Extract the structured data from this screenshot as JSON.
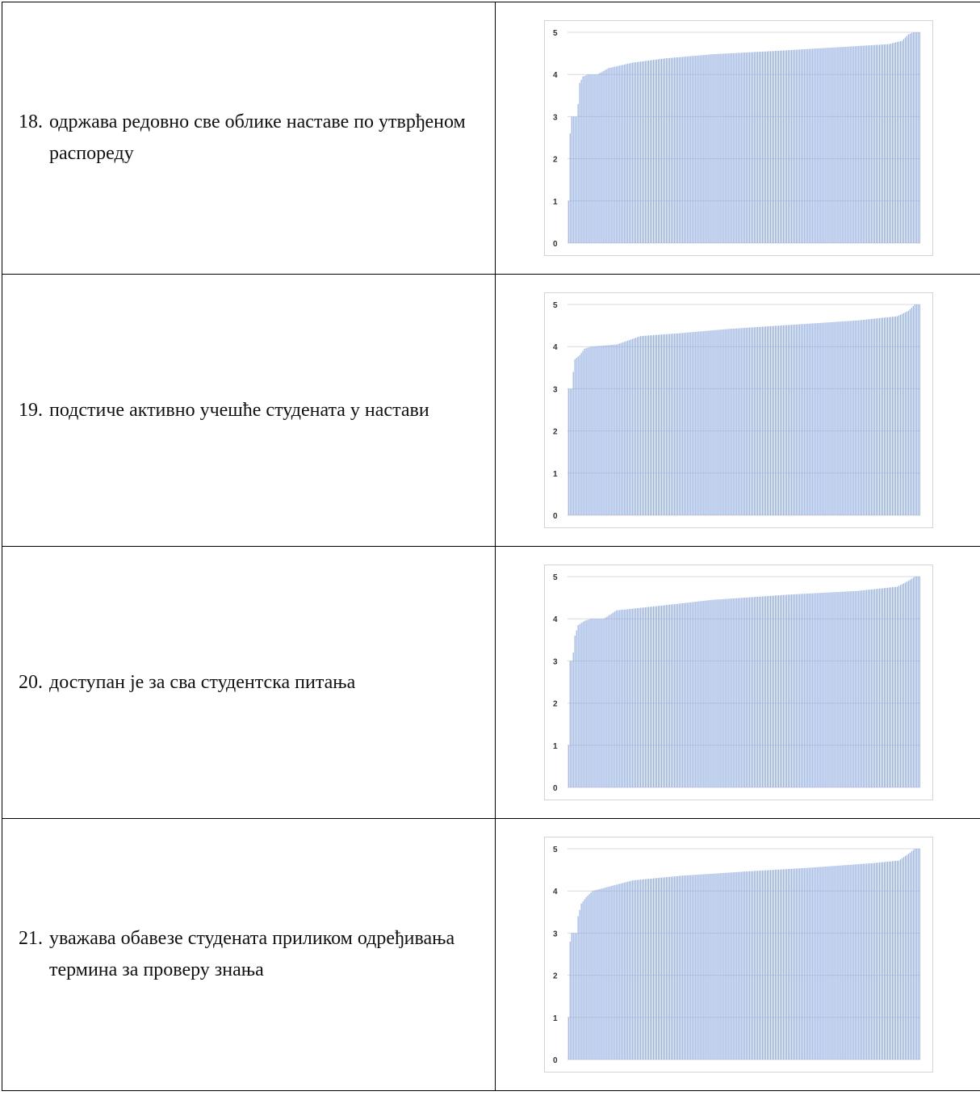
{
  "rows": [
    {
      "number": "18.",
      "text": "одржава редовно све облике наставе по утврђеном распореду",
      "chart_data": {
        "type": "bar",
        "ylim": [
          0,
          5
        ],
        "yticks": [
          "0",
          "1",
          "2",
          "3",
          "4",
          "5"
        ],
        "grid": true,
        "legend": "none",
        "color": "#8eaadf",
        "n": 220,
        "curve": [
          [
            0,
            1.0
          ],
          [
            1,
            2.6
          ],
          [
            2,
            3.0
          ],
          [
            5,
            3.0
          ],
          [
            6,
            3.3
          ],
          [
            7,
            3.8
          ],
          [
            9,
            3.95
          ],
          [
            12,
            4.0
          ],
          [
            18,
            4.0
          ],
          [
            25,
            4.15
          ],
          [
            40,
            4.28
          ],
          [
            60,
            4.38
          ],
          [
            90,
            4.48
          ],
          [
            130,
            4.56
          ],
          [
            170,
            4.65
          ],
          [
            200,
            4.72
          ],
          [
            208,
            4.8
          ],
          [
            212,
            4.95
          ],
          [
            215,
            5.0
          ],
          [
            219,
            5.0
          ]
        ]
      }
    },
    {
      "number": "19.",
      "text": "подстиче активно учешће студената у настави",
      "chart_data": {
        "type": "bar",
        "ylim": [
          0,
          5
        ],
        "yticks": [
          "0",
          "1",
          "2",
          "3",
          "4",
          "5"
        ],
        "grid": true,
        "legend": "none",
        "color": "#8eaadf",
        "n": 220,
        "curve": [
          [
            0,
            3.0
          ],
          [
            2,
            3.0
          ],
          [
            3,
            3.4
          ],
          [
            4,
            3.7
          ],
          [
            7,
            3.8
          ],
          [
            10,
            3.95
          ],
          [
            14,
            4.0
          ],
          [
            30,
            4.05
          ],
          [
            45,
            4.25
          ],
          [
            70,
            4.32
          ],
          [
            100,
            4.42
          ],
          [
            140,
            4.52
          ],
          [
            180,
            4.62
          ],
          [
            205,
            4.72
          ],
          [
            212,
            4.85
          ],
          [
            216,
            5.0
          ],
          [
            219,
            5.0
          ]
        ]
      }
    },
    {
      "number": "20.",
      "text": "доступан је за сва студентска питања",
      "chart_data": {
        "type": "bar",
        "ylim": [
          0,
          5
        ],
        "yticks": [
          "0",
          "1",
          "2",
          "3",
          "4",
          "5"
        ],
        "grid": true,
        "legend": "none",
        "color": "#8eaadf",
        "n": 220,
        "curve": [
          [
            0,
            1.0
          ],
          [
            1,
            3.0
          ],
          [
            2,
            3.0
          ],
          [
            3,
            3.2
          ],
          [
            4,
            3.6
          ],
          [
            6,
            3.85
          ],
          [
            10,
            3.95
          ],
          [
            14,
            4.0
          ],
          [
            22,
            4.0
          ],
          [
            30,
            4.2
          ],
          [
            55,
            4.3
          ],
          [
            90,
            4.45
          ],
          [
            140,
            4.58
          ],
          [
            180,
            4.66
          ],
          [
            205,
            4.76
          ],
          [
            212,
            4.9
          ],
          [
            216,
            5.0
          ],
          [
            219,
            5.0
          ]
        ]
      }
    },
    {
      "number": "21.",
      "text": "уважава обавезе студената приликом одређивања термина за проверу знања",
      "chart_data": {
        "type": "bar",
        "ylim": [
          0,
          5
        ],
        "yticks": [
          "0",
          "1",
          "2",
          "3",
          "4",
          "5"
        ],
        "grid": true,
        "legend": "none",
        "color": "#8eaadf",
        "n": 220,
        "curve": [
          [
            0,
            1.0
          ],
          [
            1,
            2.8
          ],
          [
            2,
            3.0
          ],
          [
            5,
            3.0
          ],
          [
            6,
            3.4
          ],
          [
            8,
            3.7
          ],
          [
            11,
            3.85
          ],
          [
            15,
            4.0
          ],
          [
            25,
            4.1
          ],
          [
            40,
            4.25
          ],
          [
            70,
            4.36
          ],
          [
            110,
            4.46
          ],
          [
            150,
            4.55
          ],
          [
            190,
            4.66
          ],
          [
            206,
            4.72
          ],
          [
            212,
            4.88
          ],
          [
            216,
            5.0
          ],
          [
            219,
            5.0
          ]
        ]
      }
    }
  ]
}
